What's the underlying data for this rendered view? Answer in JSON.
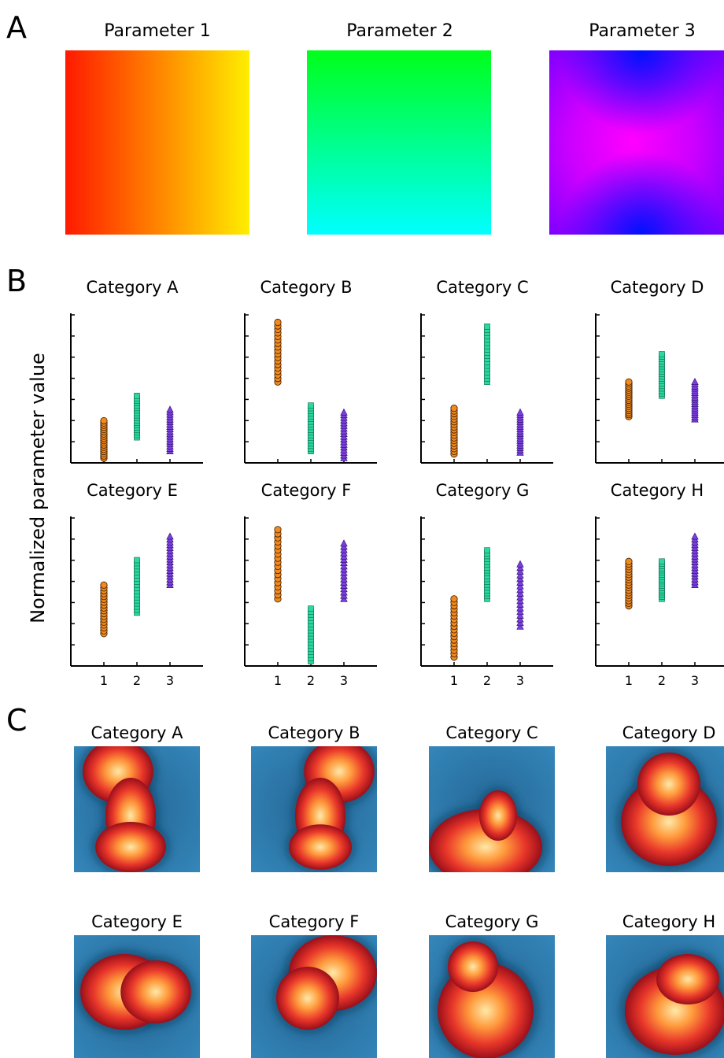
{
  "panels": {
    "a": "A",
    "b": "B",
    "c": "C"
  },
  "panel_a": {
    "titles": [
      "Parameter 1",
      "Parameter 2",
      "Parameter 3"
    ],
    "gradients": [
      {
        "left": "#ff1a00",
        "right": "#ffee00"
      },
      {
        "top": "#00ff1a",
        "bottom": "#00ffff"
      },
      {
        "center": "#ff00ff",
        "edge_top_bottom": "#0000ff",
        "edge_left": "#9900ff"
      }
    ]
  },
  "panel_b": {
    "ylabel": "Normalized parameter value",
    "xticks": [
      "1",
      "2",
      "3"
    ],
    "marker_colors": {
      "p1": "#f08a1e",
      "p2": "#2ad8a0",
      "p3": "#7b3fe0"
    },
    "categories": [
      {
        "title": "Category A",
        "p1": [
          0.0,
          0.27
        ],
        "p2": [
          0.15,
          0.45
        ],
        "p3": [
          0.05,
          0.35
        ]
      },
      {
        "title": "Category B",
        "p1": [
          0.55,
          0.98
        ],
        "p2": [
          0.05,
          0.38
        ],
        "p3": [
          0.0,
          0.33
        ]
      },
      {
        "title": "Category C",
        "p1": [
          0.03,
          0.36
        ],
        "p2": [
          0.55,
          0.95
        ],
        "p3": [
          0.04,
          0.33
        ]
      },
      {
        "title": "Category D",
        "p1": [
          0.3,
          0.55
        ],
        "p2": [
          0.45,
          0.75
        ],
        "p3": [
          0.28,
          0.55
        ]
      },
      {
        "title": "Category E",
        "p1": [
          0.2,
          0.55
        ],
        "p2": [
          0.35,
          0.73
        ],
        "p3": [
          0.55,
          0.9
        ]
      },
      {
        "title": "Category F",
        "p1": [
          0.45,
          0.95
        ],
        "p2": [
          0.0,
          0.38
        ],
        "p3": [
          0.45,
          0.85
        ]
      },
      {
        "title": "Category G",
        "p1": [
          0.03,
          0.45
        ],
        "p2": [
          0.45,
          0.8
        ],
        "p3": [
          0.25,
          0.7
        ]
      },
      {
        "title": "Category H",
        "p1": [
          0.4,
          0.72
        ],
        "p2": [
          0.45,
          0.72
        ],
        "p3": [
          0.55,
          0.9
        ]
      }
    ]
  },
  "panel_c": {
    "titles": [
      "Category A",
      "Category B",
      "Category C",
      "Category D",
      "Category E",
      "Category F",
      "Category G",
      "Category H"
    ],
    "colors": {
      "background": "#1f6f9f",
      "hot": "#ffe7a0",
      "mid": "#e8402a",
      "dark": "#a0101a"
    }
  },
  "chart_data": {
    "type": "scatter",
    "title": "",
    "ylabel": "Normalized parameter value",
    "categories": [
      "1",
      "2",
      "3"
    ],
    "series": [
      {
        "name": "Category A",
        "values": [
          [
            0.0,
            0.27
          ],
          [
            0.15,
            0.45
          ],
          [
            0.05,
            0.35
          ]
        ]
      },
      {
        "name": "Category B",
        "values": [
          [
            0.55,
            0.98
          ],
          [
            0.05,
            0.38
          ],
          [
            0.0,
            0.33
          ]
        ]
      },
      {
        "name": "Category C",
        "values": [
          [
            0.03,
            0.36
          ],
          [
            0.55,
            0.95
          ],
          [
            0.04,
            0.33
          ]
        ]
      },
      {
        "name": "Category D",
        "values": [
          [
            0.3,
            0.55
          ],
          [
            0.45,
            0.75
          ],
          [
            0.28,
            0.55
          ]
        ]
      },
      {
        "name": "Category E",
        "values": [
          [
            0.2,
            0.55
          ],
          [
            0.35,
            0.73
          ],
          [
            0.55,
            0.9
          ]
        ]
      },
      {
        "name": "Category F",
        "values": [
          [
            0.45,
            0.95
          ],
          [
            0.0,
            0.38
          ],
          [
            0.45,
            0.85
          ]
        ]
      },
      {
        "name": "Category G",
        "values": [
          [
            0.03,
            0.45
          ],
          [
            0.45,
            0.8
          ],
          [
            0.25,
            0.7
          ]
        ]
      },
      {
        "name": "Category H",
        "values": [
          [
            0.4,
            0.72
          ],
          [
            0.45,
            0.72
          ],
          [
            0.55,
            0.9
          ]
        ]
      }
    ],
    "ylim": [
      0,
      1
    ],
    "grid": false
  }
}
